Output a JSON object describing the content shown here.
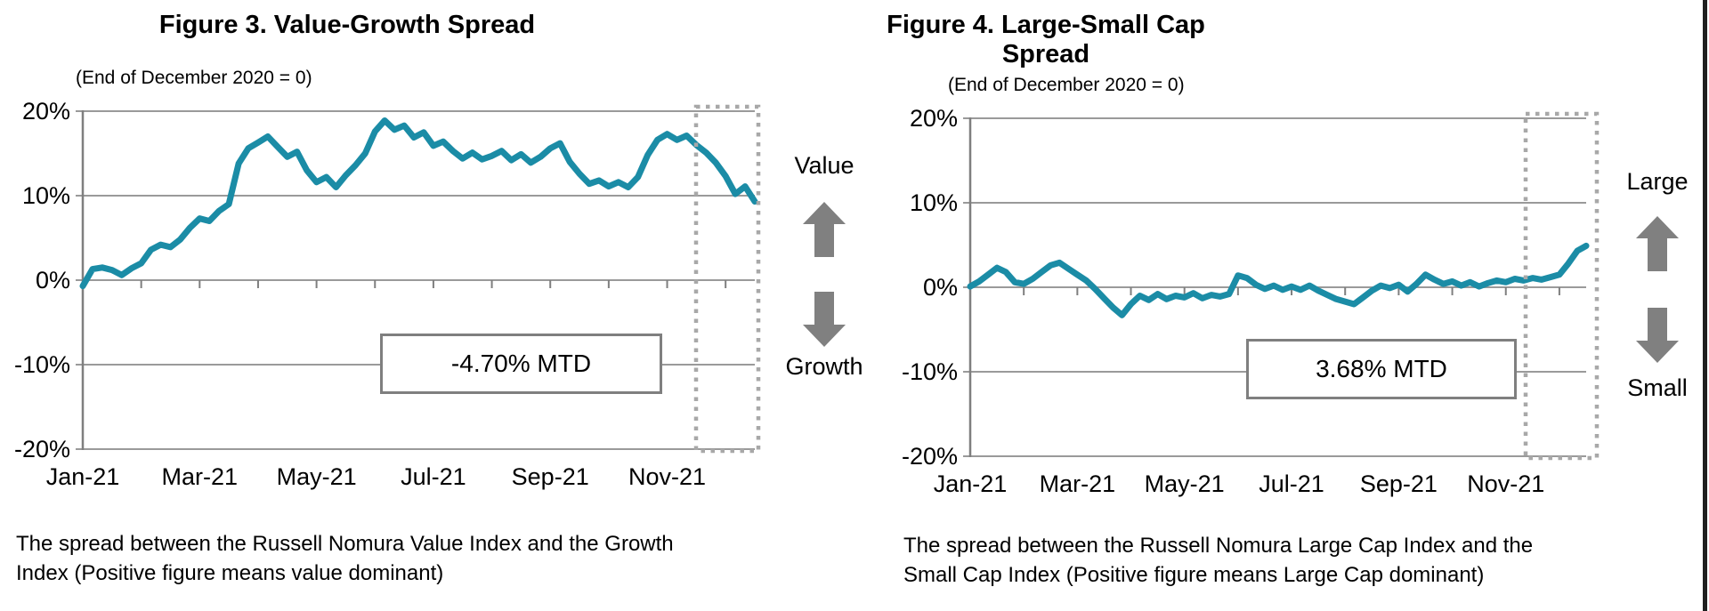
{
  "chart_data": [
    {
      "type": "line",
      "title": "Figure 3. Value-Growth Spread",
      "subtitle": "(End of December 2020 = 0)",
      "x_tick_labels": [
        "Jan-21",
        "Mar-21",
        "May-21",
        "Jul-21",
        "Sep-21",
        "Nov-21"
      ],
      "y_tick_labels": [
        "20%",
        "10%",
        "0%",
        "-10%",
        "-20%"
      ],
      "ylim": [
        -20,
        20
      ],
      "grid": "horizontal",
      "x_range": "Jan 1 2021 to mid-Dec 2021, points equally spaced (~5 days)",
      "annotation_box": "-4.70% MTD",
      "annotation": {
        "top": "Value",
        "bottom": "Growth"
      },
      "highlight": "December 2021 month-to-date period outlined with dotted box",
      "footnote": [
        "The spread between the Russell Nomura Value Index and the Growth",
        "Index (Positive figure means value dominant)"
      ],
      "series": [
        {
          "name": "Value-Growth spread (%)",
          "color": "#1b8ca6",
          "values": [
            -0.7,
            1.3,
            1.5,
            1.2,
            0.6,
            1.4,
            2.0,
            3.6,
            4.2,
            3.9,
            4.8,
            6.2,
            7.3,
            7.0,
            8.2,
            9.0,
            13.8,
            15.6,
            16.3,
            17.0,
            15.8,
            14.6,
            15.2,
            13.0,
            11.6,
            12.2,
            11.0,
            12.4,
            13.6,
            15.0,
            17.6,
            18.9,
            17.8,
            18.3,
            16.9,
            17.5,
            15.9,
            16.4,
            15.3,
            14.4,
            15.1,
            14.3,
            14.7,
            15.3,
            14.2,
            14.9,
            13.9,
            14.6,
            15.6,
            16.2,
            14.0,
            12.6,
            11.4,
            11.8,
            11.1,
            11.6,
            11.0,
            12.2,
            14.8,
            16.6,
            17.3,
            16.6,
            17.1,
            16.0,
            15.1,
            13.9,
            12.3,
            10.2,
            11.1,
            9.3
          ]
        }
      ]
    },
    {
      "type": "line",
      "title": "Figure 4. Large-Small Cap Spread",
      "subtitle": "(End of December 2020 = 0)",
      "x_tick_labels": [
        "Jan-21",
        "Mar-21",
        "May-21",
        "Jul-21",
        "Sep-21",
        "Nov-21"
      ],
      "y_tick_labels": [
        "20%",
        "10%",
        "0%",
        "-10%",
        "-20%"
      ],
      "ylim": [
        -20,
        20
      ],
      "grid": "horizontal",
      "x_range": "Jan 1 2021 to mid-Dec 2021, points equally spaced (~5 days)",
      "annotation_box": "3.68% MTD",
      "annotation": {
        "top": "Large",
        "bottom": "Small"
      },
      "highlight": "December 2021 month-to-date period outlined with dotted box",
      "footnote": [
        "The spread between the Russell Nomura Large Cap Index and the",
        "Small Cap Index (Positive figure means Large Cap dominant)"
      ],
      "series": [
        {
          "name": "Large-Small Cap spread (%)",
          "color": "#1b8ca6",
          "values": [
            0.1,
            0.7,
            1.5,
            2.3,
            1.8,
            0.6,
            0.4,
            1.0,
            1.8,
            2.6,
            2.9,
            2.2,
            1.5,
            0.8,
            -0.2,
            -1.3,
            -2.4,
            -3.3,
            -2.0,
            -1.0,
            -1.5,
            -0.8,
            -1.4,
            -1.0,
            -1.2,
            -0.7,
            -1.3,
            -0.9,
            -1.1,
            -0.8,
            1.4,
            1.1,
            0.3,
            -0.2,
            0.2,
            -0.3,
            0.1,
            -0.3,
            0.2,
            -0.4,
            -0.9,
            -1.4,
            -1.7,
            -2.0,
            -1.2,
            -0.4,
            0.2,
            -0.1,
            0.3,
            -0.5,
            0.4,
            1.5,
            0.9,
            0.4,
            0.7,
            0.2,
            0.6,
            0.1,
            0.5,
            0.8,
            0.6,
            1.0,
            0.8,
            1.1,
            0.9,
            1.2,
            1.5,
            2.8,
            4.3,
            4.9
          ]
        }
      ]
    }
  ],
  "colors": {
    "line": "#1b8ca6",
    "gridline": "#9a9a9a",
    "axis": "#7f7f7f",
    "dotted_box": "#a8a8a8",
    "arrow": "#808080",
    "page_edge": "#1f1f1f"
  }
}
